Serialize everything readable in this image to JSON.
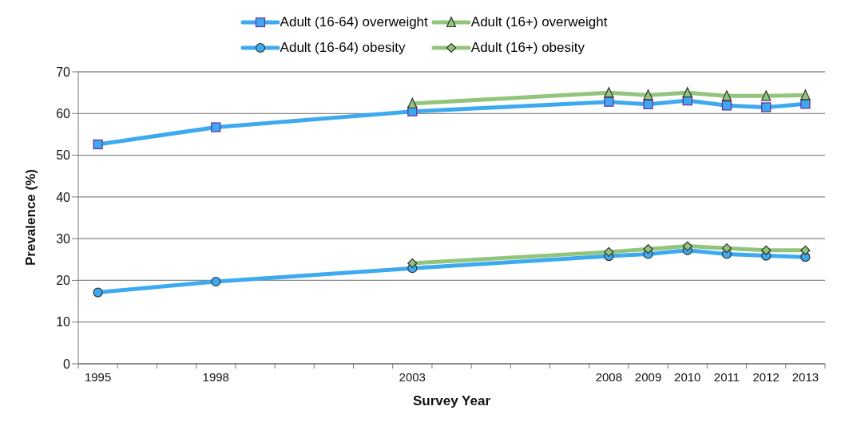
{
  "chart_data": {
    "type": "line",
    "xlabel": "Survey Year",
    "ylabel": "Prevalence (%)",
    "xlim": [
      1994.5,
      2013.5
    ],
    "xticks": [
      {
        "value": 1994.5,
        "label": null
      },
      {
        "value": 1995,
        "label": "1995"
      },
      {
        "value": 1995.5,
        "label": null
      },
      {
        "value": 1996.5,
        "label": null
      },
      {
        "value": 1997.5,
        "label": null
      },
      {
        "value": 1998,
        "label": "1998"
      },
      {
        "value": 1998.5,
        "label": null
      },
      {
        "value": 1999.5,
        "label": null
      },
      {
        "value": 2000.5,
        "label": null
      },
      {
        "value": 2001.5,
        "label": null
      },
      {
        "value": 2002.5,
        "label": null
      },
      {
        "value": 2003,
        "label": "2003"
      },
      {
        "value": 2003.5,
        "label": null
      },
      {
        "value": 2004.5,
        "label": null
      },
      {
        "value": 2005.5,
        "label": null
      },
      {
        "value": 2006.5,
        "label": null
      },
      {
        "value": 2007.5,
        "label": null
      },
      {
        "value": 2008,
        "label": "2008"
      },
      {
        "value": 2008.5,
        "label": null
      },
      {
        "value": 2009,
        "label": "2009"
      },
      {
        "value": 2009.5,
        "label": null
      },
      {
        "value": 2010,
        "label": "2010"
      },
      {
        "value": 2010.5,
        "label": null
      },
      {
        "value": 2011,
        "label": "2011"
      },
      {
        "value": 2011.5,
        "label": null
      },
      {
        "value": 2012,
        "label": "2012"
      },
      {
        "value": 2012.5,
        "label": null
      },
      {
        "value": 2013,
        "label": "2013"
      },
      {
        "value": 2013.5,
        "label": null
      }
    ],
    "ylim": [
      0,
      70
    ],
    "yticks": [
      0,
      10,
      20,
      30,
      40,
      50,
      60,
      70
    ],
    "grid": "y",
    "legend": "top",
    "line_style": "solid",
    "series": [
      {
        "name": "Adult (16-64) overweight",
        "color": "#3daaf0",
        "marker": "square",
        "x": [
          1995,
          1998,
          2003,
          2008,
          2009,
          2010,
          2011,
          2012,
          2013
        ],
        "values": [
          52.6,
          56.7,
          60.5,
          62.8,
          62.2,
          63.1,
          61.9,
          61.5,
          62.3
        ]
      },
      {
        "name": "Adult (16+) overweight",
        "color": "#92c47c",
        "marker": "triangle",
        "x": [
          2003,
          2008,
          2009,
          2010,
          2011,
          2012,
          2013
        ],
        "values": [
          62.4,
          65.0,
          64.4,
          65.0,
          64.2,
          64.2,
          64.4
        ]
      },
      {
        "name": "Adult (16-64) obesity",
        "color": "#3daaf0",
        "marker": "circle",
        "x": [
          1995,
          1998,
          2003,
          2008,
          2009,
          2010,
          2011,
          2012,
          2013
        ],
        "values": [
          17.1,
          19.7,
          22.9,
          25.8,
          26.3,
          27.2,
          26.3,
          25.9,
          25.6
        ]
      },
      {
        "name": "Adult (16+) obesity",
        "color": "#92c47c",
        "marker": "diamond",
        "x": [
          2003,
          2008,
          2009,
          2010,
          2011,
          2012,
          2013
        ],
        "values": [
          24.1,
          26.8,
          27.5,
          28.2,
          27.7,
          27.2,
          27.2
        ]
      }
    ]
  }
}
